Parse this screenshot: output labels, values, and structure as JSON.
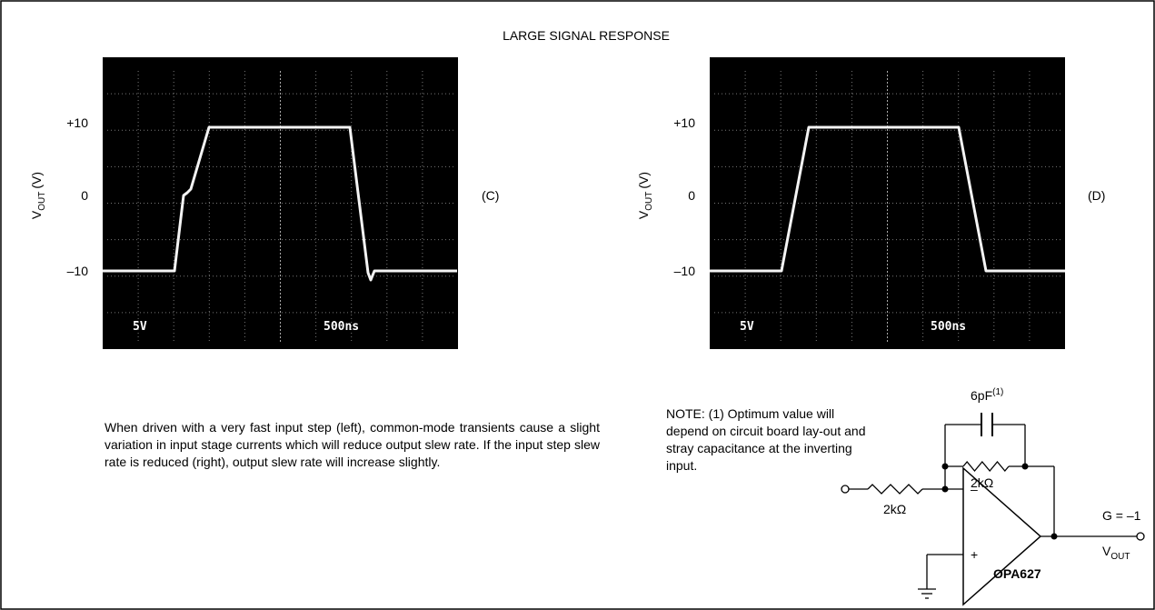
{
  "title": "LARGE SIGNAL RESPONSE",
  "panels": [
    {
      "label": "(C)",
      "y_axis": {
        "symbol": "V",
        "subscript": "OUT",
        "unit": "(V)",
        "ticks": [
          "+10",
          "0",
          "–10"
        ]
      },
      "scope": {
        "volts_per_div": "5V",
        "time_per_div": "500ns"
      }
    },
    {
      "label": "(D)",
      "y_axis": {
        "symbol": "V",
        "subscript": "OUT",
        "unit": "(V)",
        "ticks": [
          "+10",
          "0",
          "–10"
        ]
      },
      "scope": {
        "volts_per_div": "5V",
        "time_per_div": "500ns"
      }
    }
  ],
  "description": "When driven with a very fast input step (left), common-mode transients cause a slight variation in input stage currents which will reduce output slew rate. If the input step slew rate is reduced (right), output slew rate will increase slightly.",
  "note": "NOTE: (1) Optimum value will depend on circuit board lay-out and stray capacitance at the inverting input.",
  "circuit": {
    "capacitor": "6pF",
    "capacitor_note": "(1)",
    "feedback_resistor": "2kΩ",
    "input_resistor": "2kΩ",
    "inverting": "–",
    "non_inverting": "+",
    "amplifier": "OPA627",
    "gain": "G = –1",
    "output_symbol": "V",
    "output_subscript": "OUT"
  }
}
